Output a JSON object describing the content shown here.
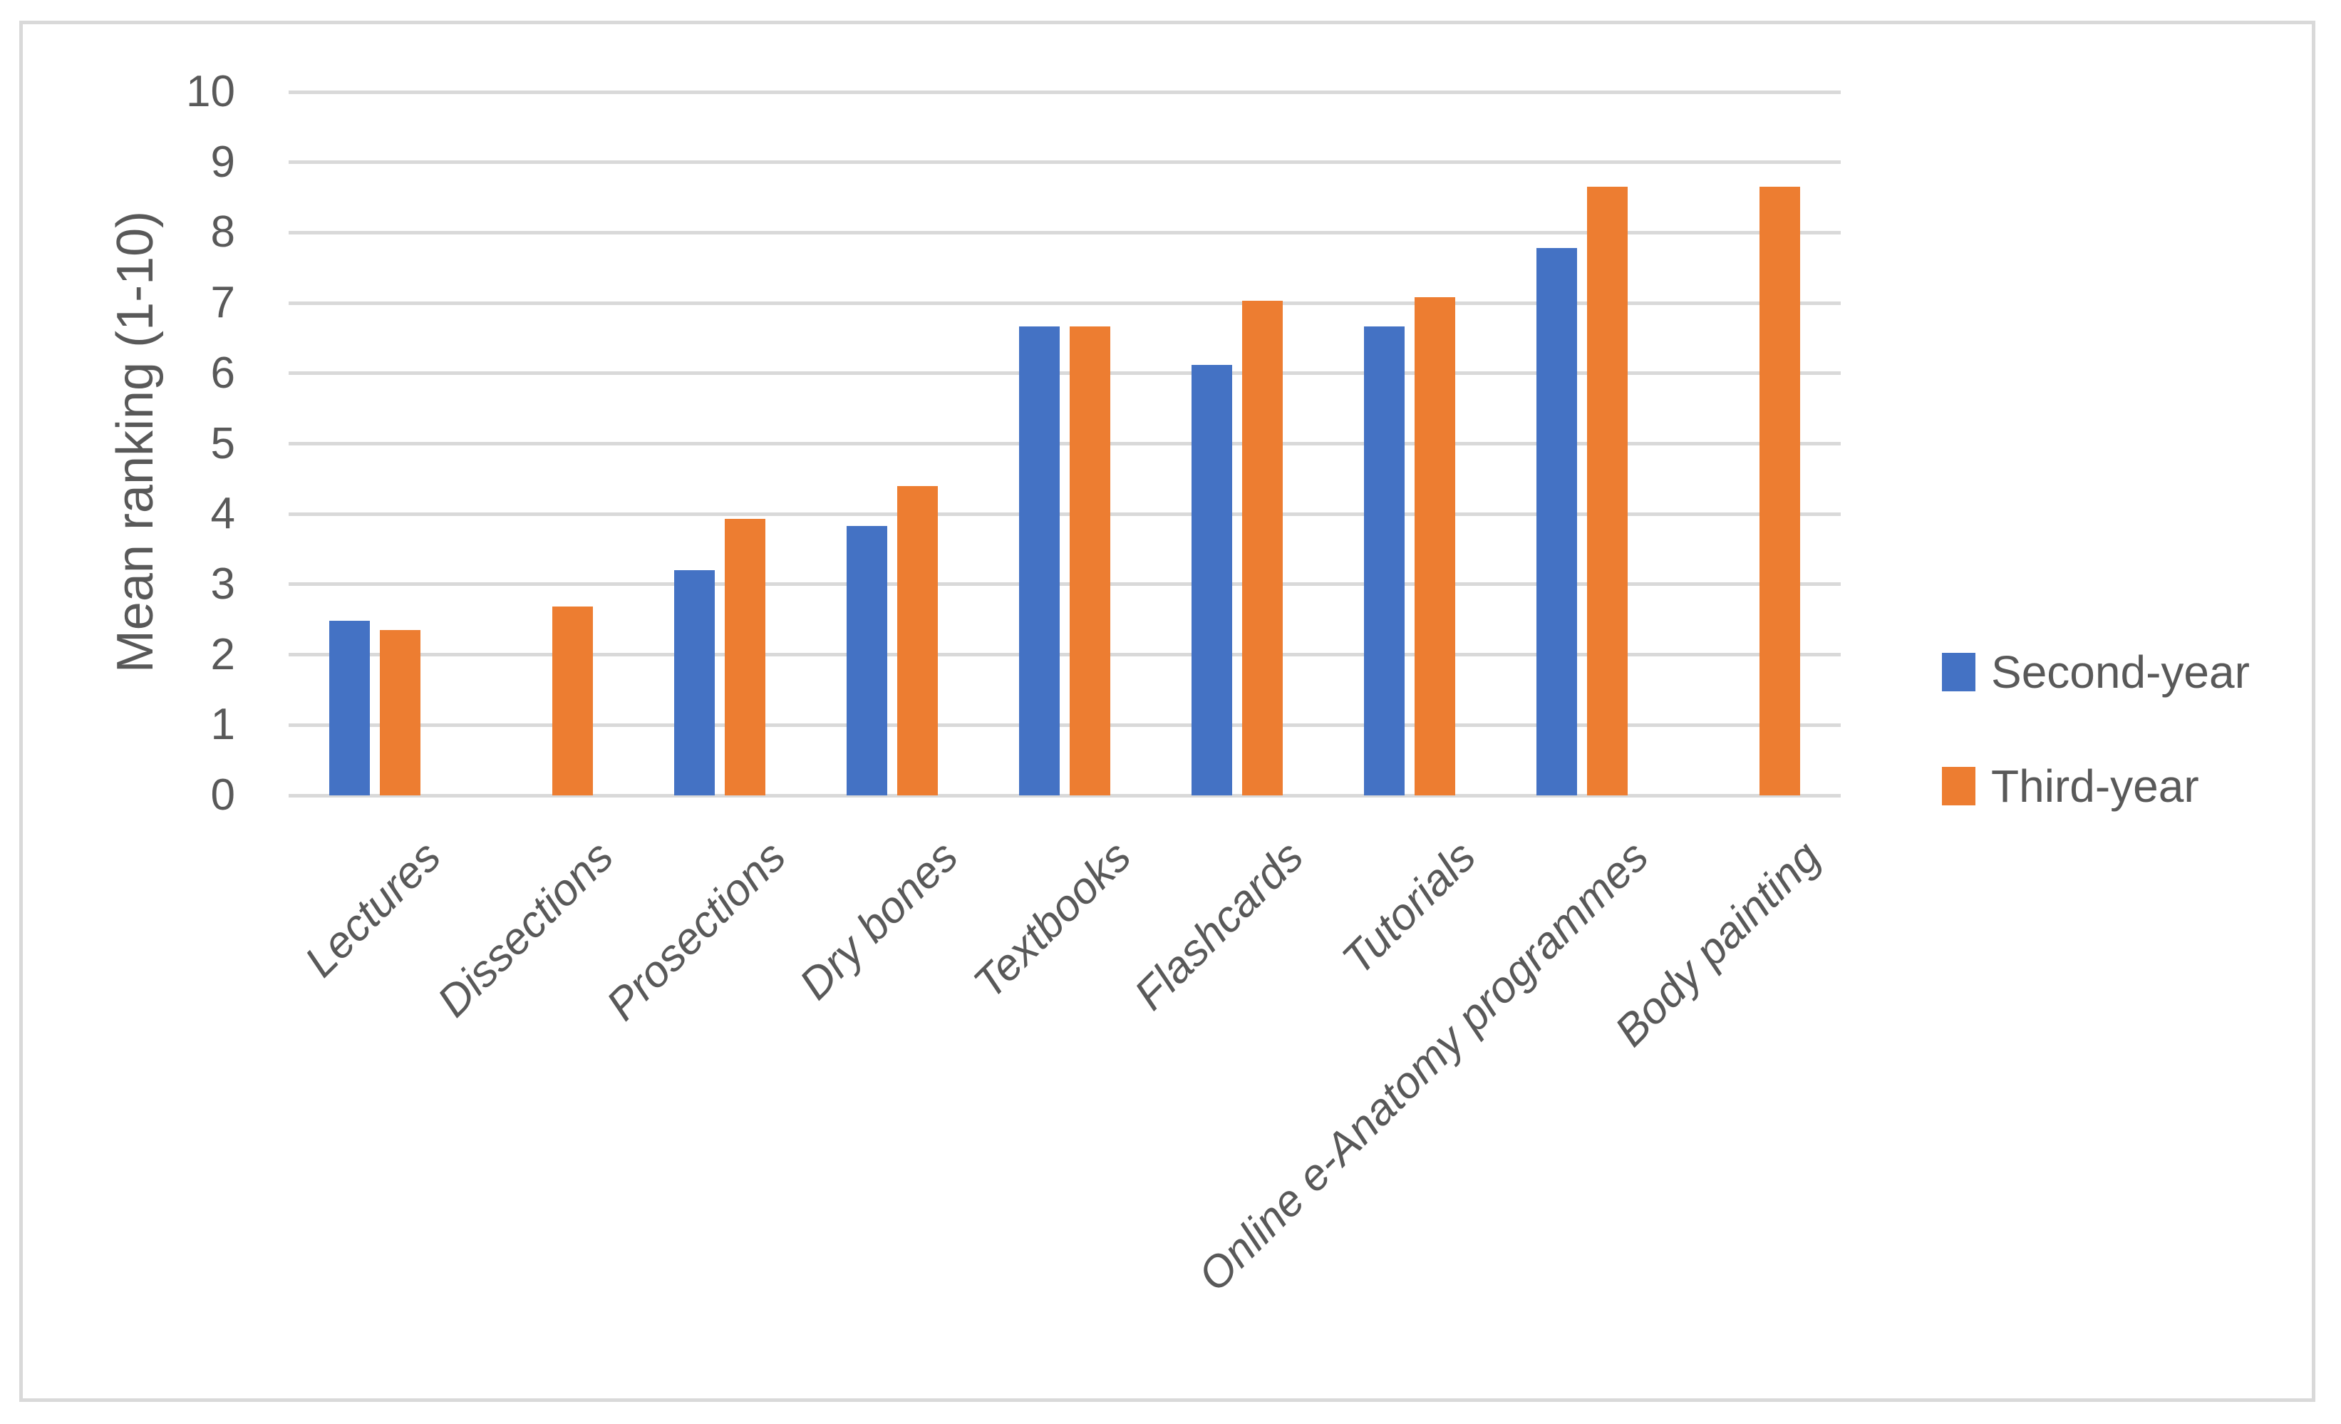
{
  "chart_data": {
    "type": "bar",
    "title": "",
    "xlabel": "",
    "ylabel": "Mean ranking (1-10)",
    "ylim": [
      0,
      10
    ],
    "ytick_step": 1,
    "grid": "horizontal",
    "legend_position": "right",
    "categories": [
      "Lectures",
      "Dissections",
      "Prosections",
      "Dry bones",
      "Textbooks",
      "Flashcards",
      "Tutorials",
      "Online e-Anatomy programmes",
      "Body painting"
    ],
    "series": [
      {
        "name": "Second-year",
        "color": "#4472C4",
        "values": [
          2.48,
          null,
          3.2,
          3.83,
          6.67,
          6.12,
          6.67,
          7.78,
          null
        ]
      },
      {
        "name": "Third-year",
        "color": "#ED7D31",
        "values": [
          2.35,
          2.68,
          3.93,
          4.4,
          6.67,
          7.03,
          7.08,
          8.65,
          8.65
        ]
      }
    ]
  },
  "y_ticks": [
    "0",
    "1",
    "2",
    "3",
    "4",
    "5",
    "6",
    "7",
    "8",
    "9",
    "10"
  ],
  "colors": {
    "gridline": "#D9D9D9",
    "frame": "#D9D9D9",
    "text": "#595959",
    "background": "#FFFFFF"
  }
}
